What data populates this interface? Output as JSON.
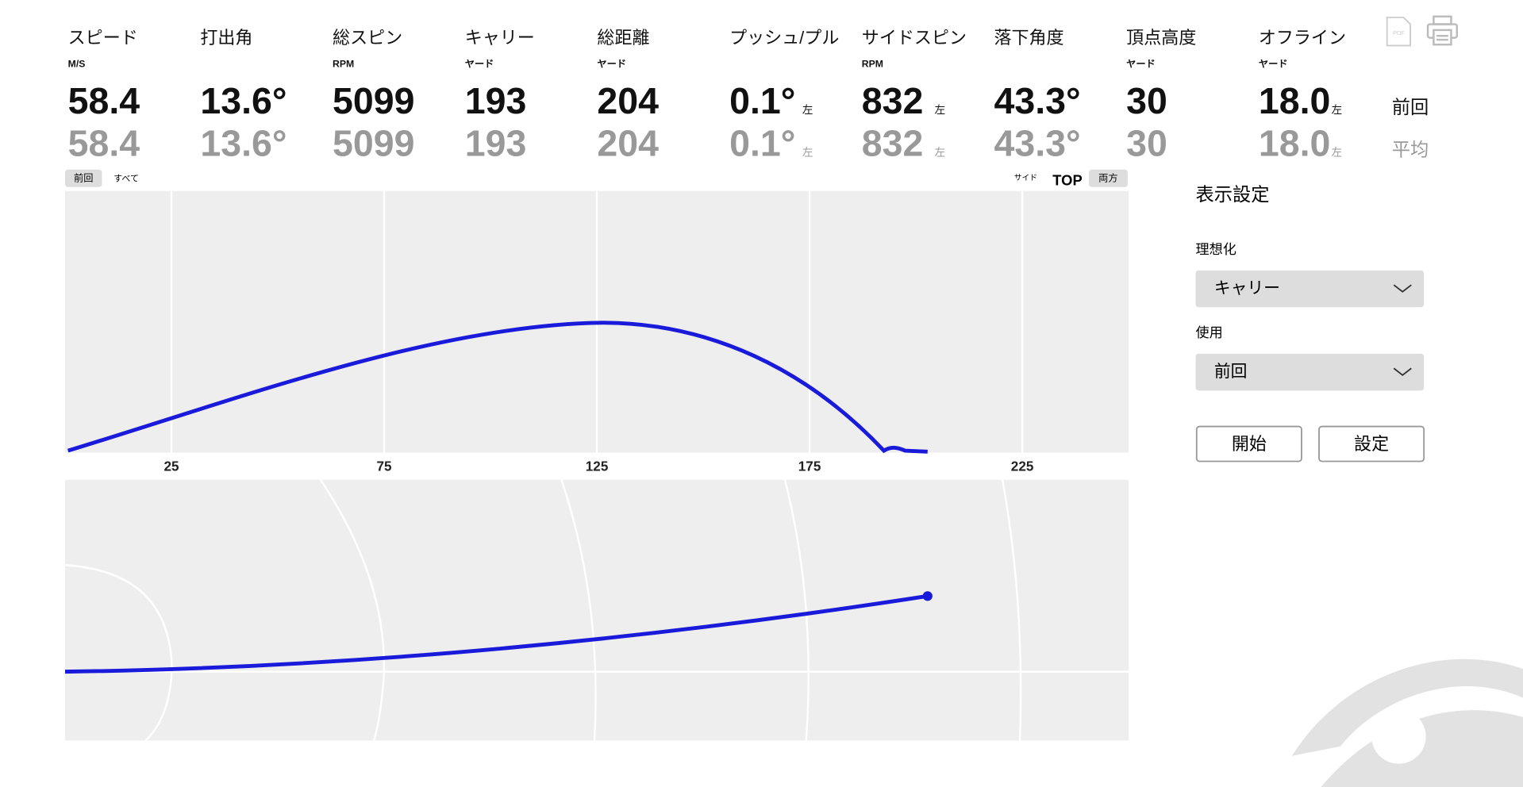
{
  "metrics": [
    {
      "label": "スピード",
      "unit": "M/S",
      "last": "58.4",
      "avg": "58.4"
    },
    {
      "label": "打出角",
      "last": "13.6°",
      "avg": "13.6°"
    },
    {
      "label": "総スピン",
      "unit": "RPM",
      "last": "5099",
      "avg": "5099"
    },
    {
      "label": "キャリー",
      "unit": "ヤード",
      "last": "193",
      "avg": "193"
    },
    {
      "label": "総距離",
      "unit": "ヤード",
      "last": "204",
      "avg": "204"
    },
    {
      "label": "プッシュ/プル",
      "last": "0.1°",
      "last_dir": "左",
      "avg": "0.1°",
      "avg_dir": "左"
    },
    {
      "label": "サイドスピン",
      "unit": "RPM",
      "last": "832",
      "last_dir": "左",
      "avg": "832",
      "avg_dir": "左"
    },
    {
      "label": "落下角度",
      "last": "43.3°",
      "avg": "43.3°"
    },
    {
      "label": "頂点高度",
      "unit": "ヤード",
      "last": "30",
      "avg": "30"
    },
    {
      "label": "オフライン",
      "unit": "ヤード",
      "last": "18.0",
      "last_dir": "左",
      "avg": "18.0",
      "avg_dir": "左"
    }
  ],
  "row_labels": [
    "前回",
    "平均"
  ],
  "shot_tabs": [
    "前回",
    "すべて"
  ],
  "view_tabs": [
    "サイド",
    "TOP",
    "両方"
  ],
  "icons": {
    "pdf": "PDF"
  },
  "side_view": {
    "xlim": [
      0,
      250
    ],
    "xticks": [
      25,
      75,
      125,
      175,
      225
    ]
  },
  "settings": {
    "title": "表示設定",
    "fields": [
      {
        "label": "理想化",
        "value": "キャリー"
      },
      {
        "label": "使用",
        "value": "前回"
      }
    ],
    "buttons": [
      "開始",
      "設定"
    ]
  }
}
